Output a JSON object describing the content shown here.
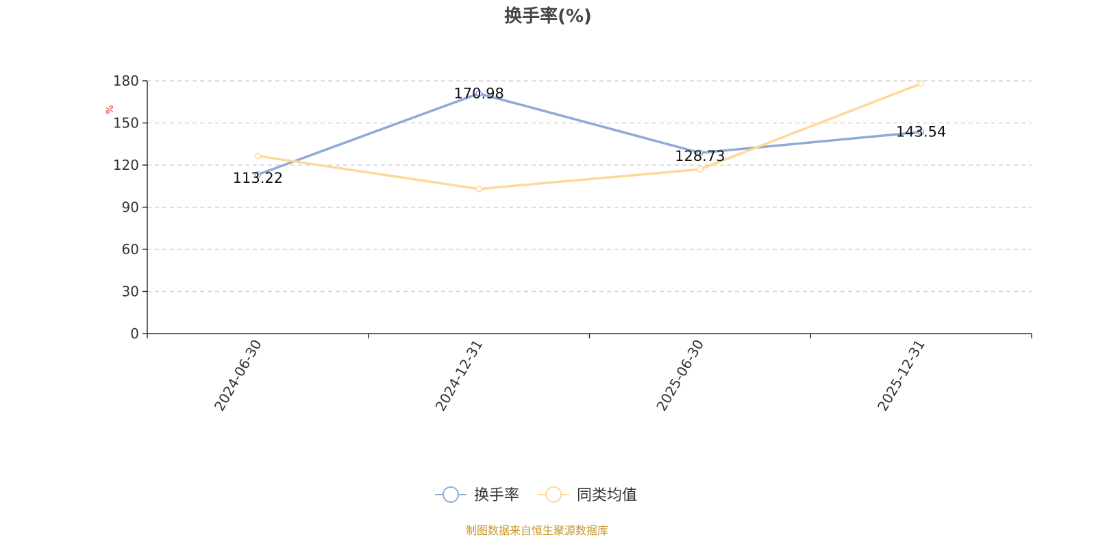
{
  "colors": {
    "series_main": "#8eaad6",
    "series_avg": "#fdd898",
    "unit": "#e8372a",
    "source": "#c9962a",
    "grid": "#cccccc",
    "axis": "#333333"
  },
  "chart_data": {
    "type": "line",
    "title": "换手率(%)",
    "ylabel": "%",
    "xlabel": "",
    "ylim": [
      0,
      180
    ],
    "yticks": [
      0,
      30,
      60,
      90,
      120,
      150,
      180
    ],
    "grid": true,
    "legend_position": "bottom-center",
    "categories": [
      "2024-06-30",
      "2024-12-31",
      "2025-06-30",
      "2025-12-31"
    ],
    "series": [
      {
        "name": "换手率",
        "values": [
          113.22,
          170.98,
          128.73,
          143.54
        ],
        "show_labels": true
      },
      {
        "name": "同类均值",
        "values": [
          126.5,
          103.0,
          117.0,
          178.0
        ],
        "show_labels": false
      }
    ]
  },
  "footer": {
    "source": "制图数据来自恒生聚源数据库"
  }
}
